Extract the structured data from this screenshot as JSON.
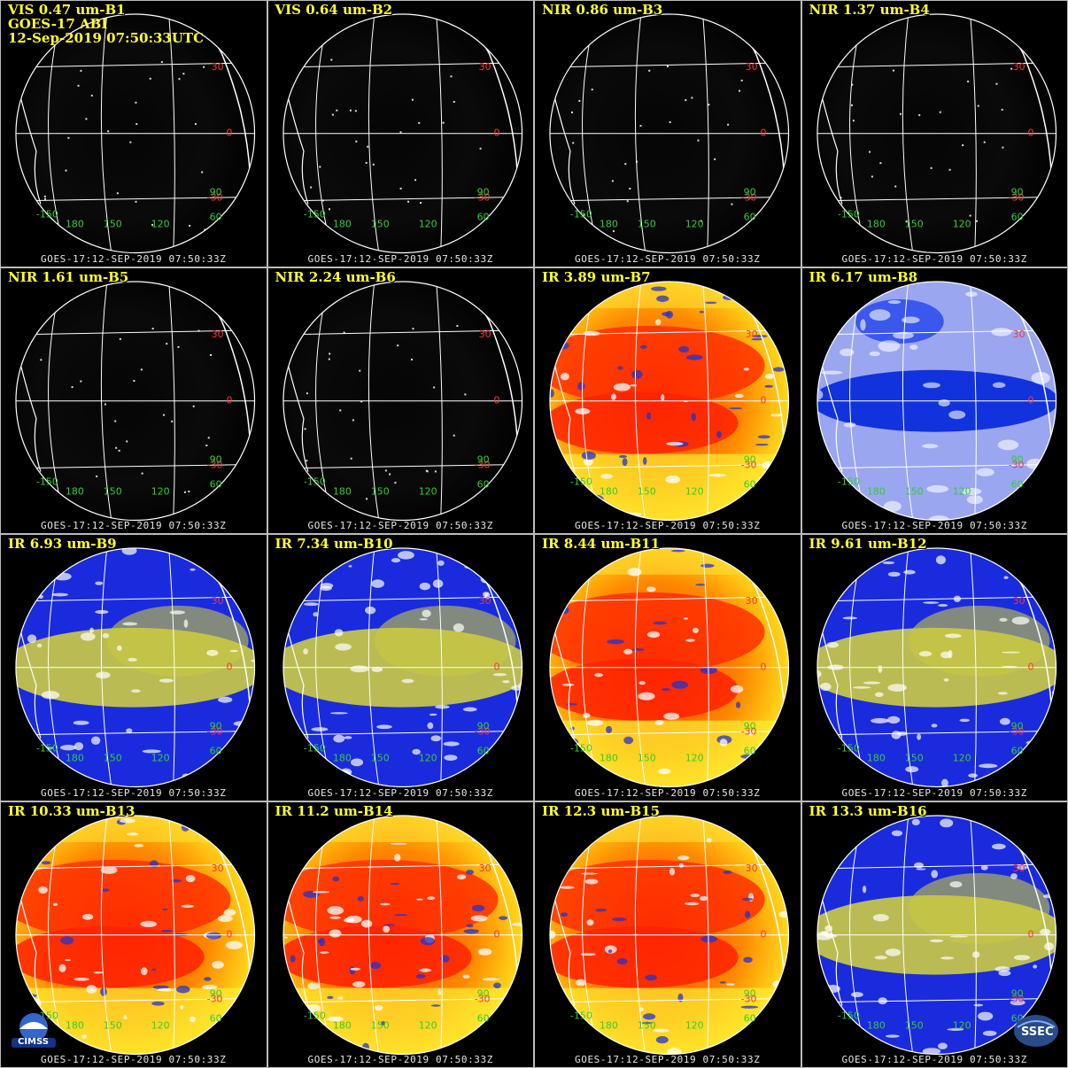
{
  "image": {
    "satellite_stamp": "GOES-17 ABI",
    "datetime_stamp": "12-Sep-2019 07:50:33UTC"
  },
  "panels": [
    {
      "label": "VIS 0.47 um-B1",
      "style": "vis",
      "footer": "GOES-17:12-SEP-2019 07:50:33Z"
    },
    {
      "label": "VIS 0.64 um-B2",
      "style": "vis",
      "footer": "GOES-17:12-SEP-2019 07:50:33Z"
    },
    {
      "label": "NIR 0.86 um-B3",
      "style": "vis",
      "footer": "GOES-17:12-SEP-2019 07:50:33Z"
    },
    {
      "label": "NIR 1.37 um-B4",
      "style": "vis",
      "footer": "GOES-17:12-SEP-2019 07:50:33Z"
    },
    {
      "label": "NIR 1.61 um-B5",
      "style": "vis",
      "footer": "GOES-17:12-SEP-2019 07:50:33Z"
    },
    {
      "label": "NIR 2.24 um-B6",
      "style": "vis",
      "footer": "GOES-17:12-SEP-2019 07:50:33Z"
    },
    {
      "label": "IR 3.89 um-B7",
      "style": "ir",
      "footer": "GOES-17:12-SEP-2019 07:50:33Z"
    },
    {
      "label": "IR 6.17 um-B8",
      "style": "wv-light",
      "footer": "GOES-17:12-SEP-2019 07:50:33Z"
    },
    {
      "label": "IR 6.93 um-B9",
      "style": "wv",
      "footer": "GOES-17:12-SEP-2019 07:50:33Z"
    },
    {
      "label": "IR 7.34 um-B10",
      "style": "wv",
      "footer": "GOES-17:12-SEP-2019 07:50:33Z"
    },
    {
      "label": "IR 8.44 um-B11",
      "style": "ir",
      "footer": "GOES-17:12-SEP-2019 07:50:33Z"
    },
    {
      "label": "IR 9.61 um-B12",
      "style": "wv",
      "footer": "GOES-17:12-SEP-2019 07:50:33Z"
    },
    {
      "label": "IR 10.33 um-B13",
      "style": "ir",
      "footer": "GOES-17:12-SEP-2019 07:50:33Z"
    },
    {
      "label": "IR 11.2 um-B14",
      "style": "ir",
      "footer": "GOES-17:12-SEP-2019 07:50:33Z"
    },
    {
      "label": "IR 12.3 um-B15",
      "style": "ir",
      "footer": "GOES-17:12-SEP-2019 07:50:33Z"
    },
    {
      "label": "IR 13.3 um-B16",
      "style": "wv",
      "footer": "GOES-17:12-SEP-2019 07:50:33Z"
    }
  ],
  "lat_labels": [
    "30",
    "0",
    "-30"
  ],
  "lat_label_color": "#ff3333",
  "lon_labels": [
    "-150",
    "180",
    "150",
    "120",
    "90",
    "60"
  ],
  "lon_label_color": "#33cc33",
  "palettes": {
    "vis": {
      "base": "#050505",
      "mid": "#0a0a0a",
      "edge": "#000000"
    },
    "ir": {
      "base": "#ff3300",
      "mid": "#ff8800",
      "edge": "#ffee22"
    },
    "wv": {
      "base": "#d8d84a",
      "mid": "#2233ee",
      "edge": "#1122cc"
    },
    "wv-light": {
      "base": "#1133dd",
      "mid": "#8899ee",
      "edge": "#ddddff"
    }
  },
  "logos": {
    "left": "CIMSS",
    "right": "SSEC"
  }
}
